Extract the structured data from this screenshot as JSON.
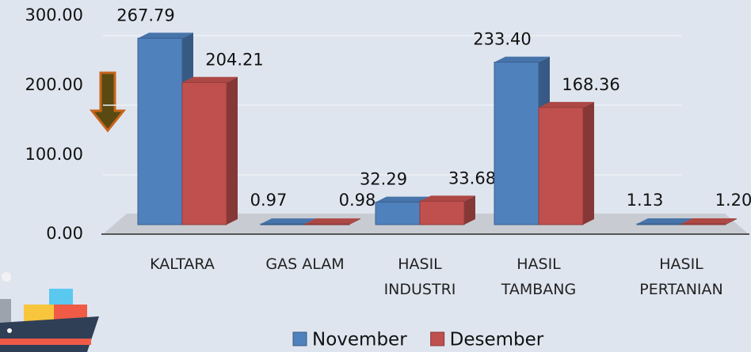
{
  "chart_data": {
    "type": "bar3d",
    "categories": [
      "KALTARA",
      "GAS ALAM",
      "HASIL\nINDUSTRI",
      "HASIL\nTAMBANG",
      "HASIL\nPERTANIAN"
    ],
    "series": [
      {
        "name": "November",
        "color": "#4f81bd",
        "values": [
          267.79,
          0.97,
          32.29,
          233.4,
          1.13
        ],
        "value_labels": [
          "267.79",
          "0.97",
          "32.29",
          "233.40",
          "1.13"
        ]
      },
      {
        "name": "Desember",
        "color": "#c0504d",
        "values": [
          204.21,
          0.98,
          33.68,
          168.36,
          1.2
        ],
        "value_labels": [
          "204.21",
          "0.98",
          "33.68",
          "168.36",
          "1.20"
        ]
      }
    ],
    "ylim": [
      0,
      300
    ],
    "yticks": [
      {
        "value": 0,
        "label": "0.00"
      },
      {
        "value": 100,
        "label": "100.00"
      },
      {
        "value": 200,
        "label": "200.00"
      },
      {
        "value": 300,
        "label": "300.00"
      }
    ],
    "grid": true,
    "legend": "bottom"
  }
}
